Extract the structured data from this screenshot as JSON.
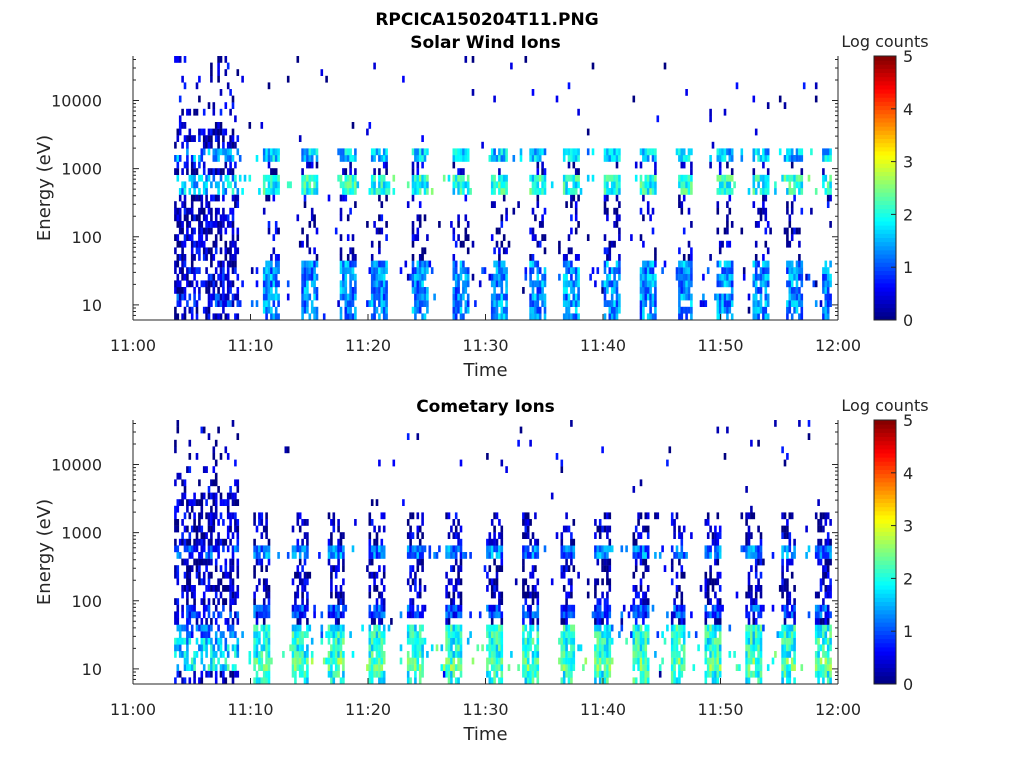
{
  "figure": {
    "title": "RPCICA150204T11.PNG"
  },
  "chart_data": [
    {
      "type": "heatmap",
      "title": "Solar Wind Ions",
      "xlabel": "Time",
      "ylabel": "Energy (eV)",
      "x_tick_labels": [
        "11:00",
        "11:10",
        "11:20",
        "11:30",
        "11:40",
        "11:50",
        "12:00"
      ],
      "x_range_minutes": [
        0,
        60
      ],
      "y_scale": "log",
      "y_range_eV": [
        6,
        45000
      ],
      "y_tick_values": [
        10,
        100,
        1000,
        10000
      ],
      "y_tick_labels": [
        "10",
        "100",
        "1000",
        "10000"
      ],
      "colorbar": {
        "label": "Log counts",
        "range": [
          0,
          5
        ],
        "tick_labels": [
          "0",
          "1",
          "2",
          "3",
          "4",
          "5"
        ],
        "colormap": "jet"
      },
      "data_start_minute": 3.5,
      "data_end_minute": 59.5,
      "bursts_start_minute": [
        11.0,
        14.2,
        17.5,
        20.2,
        23.6,
        27.1,
        30.3,
        33.6,
        36.5,
        40.0,
        43.0,
        46.2,
        49.5,
        52.6,
        55.5,
        58.5
      ],
      "background_bands_eV": [
        {
          "energy": 600,
          "level": 2.0
        },
        {
          "energy": 1500,
          "level": 1.6
        },
        {
          "energy": 25,
          "level": 0.6
        },
        {
          "energy": 12,
          "level": 0.9
        }
      ]
    },
    {
      "type": "heatmap",
      "title": "Cometary Ions",
      "xlabel": "Time",
      "ylabel": "Energy (eV)",
      "x_tick_labels": [
        "11:00",
        "11:10",
        "11:20",
        "11:30",
        "11:40",
        "11:50",
        "12:00"
      ],
      "x_range_minutes": [
        0,
        60
      ],
      "y_scale": "log",
      "y_range_eV": [
        6,
        45000
      ],
      "y_tick_values": [
        10,
        100,
        1000,
        10000
      ],
      "y_tick_labels": [
        "10",
        "100",
        "1000",
        "10000"
      ],
      "colorbar": {
        "label": "Log counts",
        "range": [
          0,
          5
        ],
        "tick_labels": [
          "0",
          "1",
          "2",
          "3",
          "4",
          "5"
        ],
        "colormap": "jet"
      },
      "data_start_minute": 3.5,
      "data_end_minute": 59.5,
      "bursts_start_minute": [
        10.2,
        13.5,
        16.5,
        20.0,
        23.2,
        26.5,
        30.0,
        33.0,
        36.2,
        39.2,
        42.5,
        45.6,
        48.5,
        52.0,
        55.0,
        58.0
      ],
      "background_bands_eV": [
        {
          "energy": 12,
          "level": 2.3
        },
        {
          "energy": 20,
          "level": 2.0
        },
        {
          "energy": 35,
          "level": 1.4
        },
        {
          "energy": 70,
          "level": 0.9
        },
        {
          "energy": 550,
          "level": 1.2
        }
      ]
    }
  ]
}
